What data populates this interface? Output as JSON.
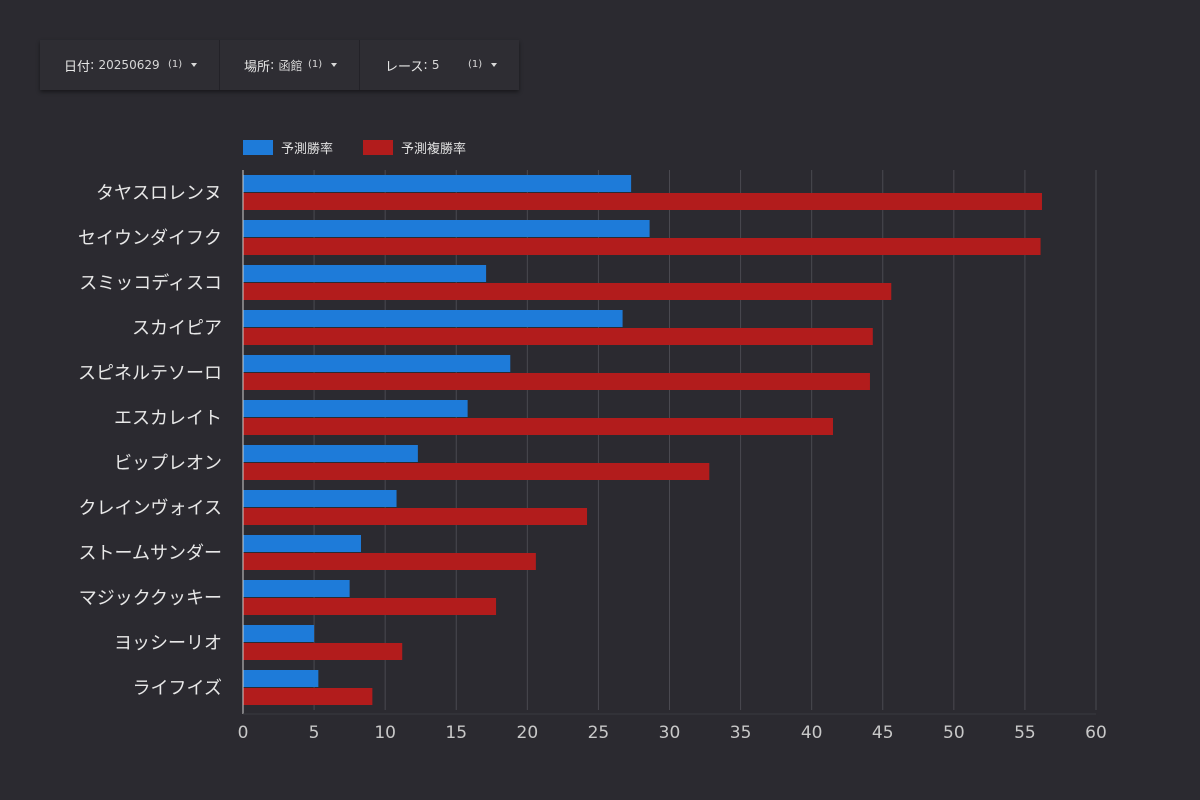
{
  "filters": [
    {
      "label": "日付",
      "value": "20250629",
      "count": "(1)"
    },
    {
      "label": "場所",
      "value": "函館",
      "count": "(1)"
    },
    {
      "label": "レース",
      "value": "5",
      "count": "(1)"
    }
  ],
  "colors": {
    "win": "#1e7bd9",
    "place": "#b21c1c",
    "axis": "#d0d0d0",
    "grid": "#4a4950"
  },
  "chart_data": {
    "type": "bar",
    "orientation": "horizontal",
    "categories": [
      "タヤスロレンヌ",
      "セイウンダイフク",
      "スミッコディスコ",
      "スカイピア",
      "スピネルテソーロ",
      "エスカレイト",
      "ビップレオン",
      "クレインヴォイス",
      "ストームサンダー",
      "マジッククッキー",
      "ヨッシーリオ",
      "ライフイズ"
    ],
    "series": [
      {
        "name": "予測勝率",
        "values": [
          27.3,
          28.6,
          17.1,
          26.7,
          18.8,
          15.8,
          12.3,
          10.8,
          8.3,
          7.5,
          5.0,
          5.3
        ]
      },
      {
        "name": "予測複勝率",
        "values": [
          56.2,
          56.1,
          45.6,
          44.3,
          44.1,
          41.5,
          32.8,
          24.2,
          20.6,
          17.8,
          11.2,
          9.1
        ]
      }
    ],
    "xlim": [
      0,
      60
    ],
    "xticks": [
      0,
      5,
      10,
      15,
      20,
      25,
      30,
      35,
      40,
      45,
      50,
      55,
      60
    ],
    "grid": true,
    "legend": "top-left"
  }
}
